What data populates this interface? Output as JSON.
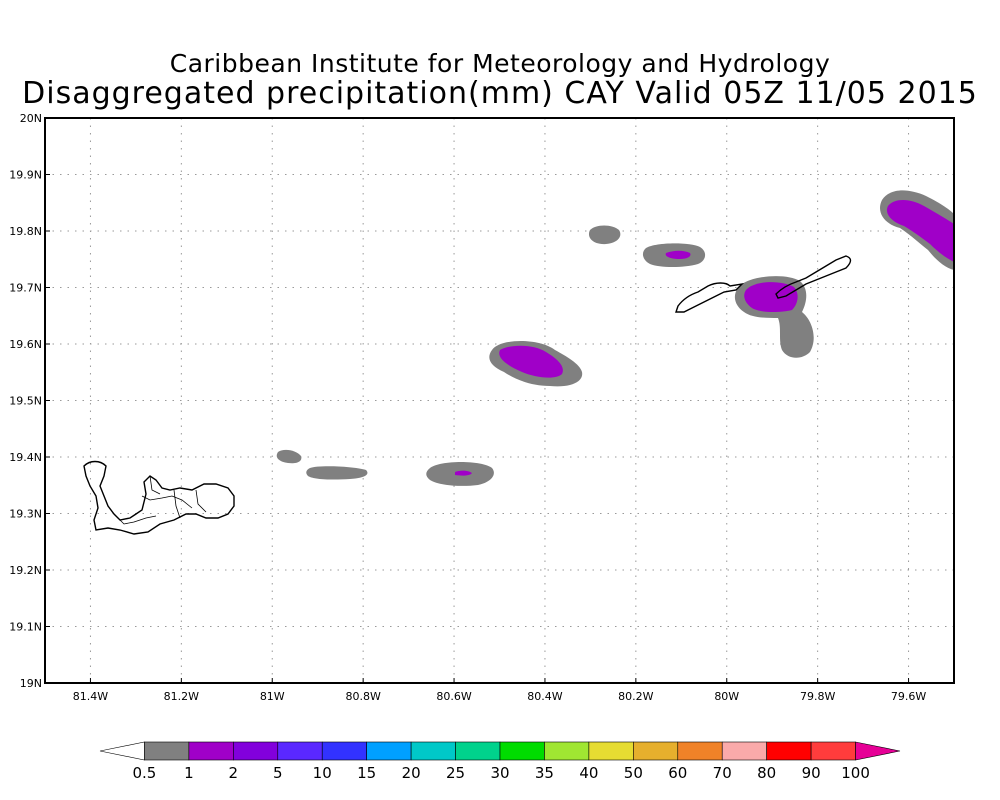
{
  "title": {
    "line1": "Caribbean Institute for Meteorology and Hydrology",
    "line2": "Disaggregated precipitation(mm) CAY Valid 05Z 11/05 2015"
  },
  "map": {
    "lon_range": [
      -81.5,
      -79.5
    ],
    "lat_range": [
      19.0,
      20.0
    ],
    "grid": "dotted",
    "lon_ticks": [
      {
        "value": -81.4,
        "label": "81.4W"
      },
      {
        "value": -81.2,
        "label": "81.2W"
      },
      {
        "value": -81.0,
        "label": "81W"
      },
      {
        "value": -80.8,
        "label": "80.8W"
      },
      {
        "value": -80.6,
        "label": "80.6W"
      },
      {
        "value": -80.4,
        "label": "80.4W"
      },
      {
        "value": -80.2,
        "label": "80.2W"
      },
      {
        "value": -80.0,
        "label": "80W"
      },
      {
        "value": -79.8,
        "label": "79.8W"
      },
      {
        "value": -79.6,
        "label": "79.6W"
      }
    ],
    "lat_ticks": [
      {
        "value": 20.0,
        "label": "20N"
      },
      {
        "value": 19.9,
        "label": "19.9N"
      },
      {
        "value": 19.8,
        "label": "19.8N"
      },
      {
        "value": 19.7,
        "label": "19.7N"
      },
      {
        "value": 19.6,
        "label": "19.6N"
      },
      {
        "value": 19.5,
        "label": "19.5N"
      },
      {
        "value": 19.4,
        "label": "19.4N"
      },
      {
        "value": 19.3,
        "label": "19.3N"
      },
      {
        "value": 19.2,
        "label": "19.2N"
      },
      {
        "value": 19.1,
        "label": "19.1N"
      },
      {
        "value": 19.0,
        "label": "19N"
      }
    ],
    "islands": [
      "Grand Cayman",
      "Little Cayman",
      "Cayman Brac"
    ]
  },
  "colorbar": {
    "labels": [
      "0.5",
      "1",
      "2",
      "5",
      "10",
      "15",
      "20",
      "25",
      "30",
      "35",
      "40",
      "50",
      "60",
      "70",
      "80",
      "90",
      "100"
    ],
    "colors": [
      "#ffffff",
      "#808080",
      "#a000c8",
      "#8200dc",
      "#5a28ff",
      "#3232ff",
      "#00a0ff",
      "#00c8c8",
      "#00d28c",
      "#00dc00",
      "#a0e632",
      "#e6dc32",
      "#e6af2d",
      "#f08228",
      "#faaaaa",
      "#ff0000",
      "#ff3c3c",
      "#e60096"
    ]
  },
  "precip_areas": [
    {
      "lon": -80.27,
      "lat": 19.795,
      "category": "0.5-1"
    },
    {
      "lon": -80.12,
      "lat": 19.76,
      "category": "1-2"
    },
    {
      "lon": -79.87,
      "lat": 19.69,
      "category": "1-2"
    },
    {
      "lon": -79.84,
      "lat": 19.62,
      "category": "0.5-1"
    },
    {
      "lon": -80.42,
      "lat": 19.57,
      "category": "1-2"
    },
    {
      "lon": -80.58,
      "lat": 19.37,
      "category": "1-2"
    },
    {
      "lon": -80.86,
      "lat": 19.37,
      "category": "0.5-1"
    },
    {
      "lon": -80.97,
      "lat": 19.4,
      "category": "0.5-1"
    },
    {
      "lon": -79.58,
      "lat": 19.82,
      "category": "1-2"
    }
  ]
}
